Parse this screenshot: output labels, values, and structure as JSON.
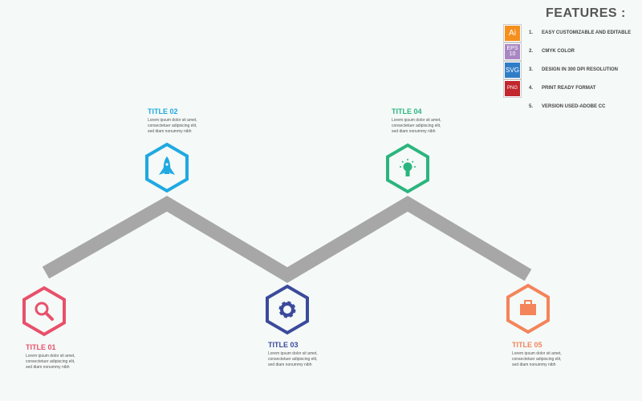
{
  "features": {
    "title": "FEATURES :",
    "items": [
      {
        "badge": "Ai",
        "badge_color": "#f4901e",
        "num": "1.",
        "text": "EASY CUSTOMIZABLE AND EDITABLE"
      },
      {
        "badge": "EPS 10",
        "badge_color": "#a987c3",
        "num": "2.",
        "text": "CMYK COLOR"
      },
      {
        "badge": "SVG",
        "badge_color": "#2f7dc8",
        "num": "3.",
        "text": "DESIGN IN 300 DPI RESOLUTION"
      },
      {
        "badge": "PNG",
        "badge_color": "#c1272d",
        "num": "4.",
        "text": "PRINT READY FORMAT"
      },
      {
        "badge": "",
        "badge_color": "",
        "num": "5.",
        "text": "VERSION USED-ADOBE CC"
      }
    ]
  },
  "steps": [
    {
      "title": "TITLE 01",
      "body": "Lorem ipsum dolor sit amet, consectetuer adipiscing elit, sed diam nonummy nibh",
      "color": "#e8506a",
      "icon": "search-icon"
    },
    {
      "title": "TITLE 02",
      "body": "Lorem ipsum dolor sit amet, consectetuer adipiscing elit, sed diam nonummy nibh",
      "color": "#1ea9e1",
      "icon": "rocket-icon"
    },
    {
      "title": "TITLE 03",
      "body": "Lorem ipsum dolor sit amet, consectetuer adipiscing elit, sed diam nonummy nibh",
      "color": "#3b4a9b",
      "icon": "gear-icon"
    },
    {
      "title": "TITLE 04",
      "body": "Lorem ipsum dolor sit amet, consectetuer adipiscing elit, sed diam nonummy nibh",
      "color": "#2bb57e",
      "icon": "lightbulb-icon"
    },
    {
      "title": "TITLE 05",
      "body": "Lorem ipsum dolor sit amet, consectetuer adipiscing elit, sed diam nonummy nibh",
      "color": "#f4845a",
      "icon": "briefcase-icon"
    }
  ],
  "line_color": "#a7a7a7"
}
